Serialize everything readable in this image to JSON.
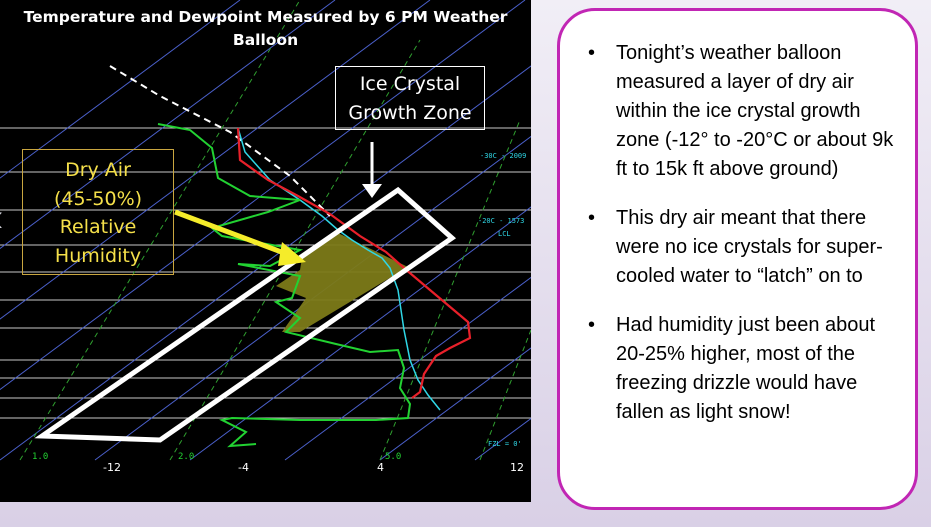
{
  "chart": {
    "title": "Temperature and Dewpoint Measured by 6 PM Weather\nBalloon",
    "ice_label": "Ice Crystal\nGrowth Zone",
    "dry_label": "Dry Air\n(45-50%)\nRelative\nHumidity",
    "x_ticks": [
      "-12",
      "-4",
      "4",
      "12"
    ],
    "mixing_ratio_labels": [
      "1.0",
      "2.0",
      "5.0"
    ],
    "isotherm_labels": [
      "-30C - 2009",
      "-20C - 1573"
    ],
    "side_labels": [
      "LCL",
      "FZL = 0'"
    ],
    "colors": {
      "temperature": "#e8202a",
      "dewpoint": "#22d232",
      "wetbulb": "#2fd7e6",
      "dry_zone": "#7c7a18",
      "isobar": "#c8c8c8",
      "isotherm": "#4a5fc9",
      "mixing_ratio": "#2f9f2f"
    }
  },
  "nav": {
    "prev_icon": "chevron-left-icon",
    "next_icon": "chevron-right-icon"
  },
  "info": {
    "bullets": [
      "Tonight’s weather balloon measured a layer of dry air within the ice crystal growth zone (-12° to -20°C or about 9k ft to 15k ft above ground)",
      "This dry air meant that there were no ice crystals for super-cooled water to “latch” on to",
      "Had humidity just been about 20-25% higher, most of the freezing drizzle would have fallen as light snow!"
    ]
  }
}
